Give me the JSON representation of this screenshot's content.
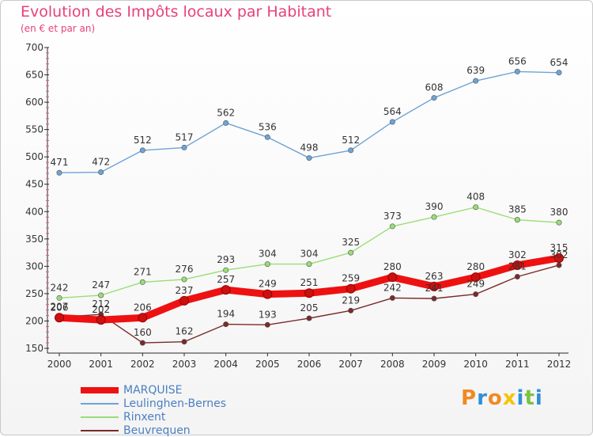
{
  "header": {
    "title": "Evolution des Impôts locaux par Habitant",
    "subtitle": "(en € et par an)"
  },
  "logo": {
    "text": "Proxiti"
  },
  "colors": {
    "title": "#e8417a",
    "axis": "#2a2a2a",
    "grid": "#ee5577"
  },
  "chart_data": {
    "type": "line",
    "categories": [
      "2000",
      "2001",
      "2002",
      "2003",
      "2004",
      "2005",
      "2006",
      "2007",
      "2008",
      "2009",
      "2010",
      "2011",
      "2012"
    ],
    "ylim": [
      150,
      700
    ],
    "yticks": [
      150,
      200,
      250,
      300,
      350,
      400,
      450,
      500,
      550,
      600,
      650,
      700
    ],
    "grid": false,
    "legend_position": "bottom-left",
    "series": [
      {
        "name": "MARQUISE",
        "color": "#ee1111",
        "values": [
          206,
          202,
          206,
          237,
          257,
          249,
          251,
          259,
          280,
          263,
          280,
          302,
          315
        ]
      },
      {
        "name": "Leulinghen-Bernes",
        "color": "#6fa3d6",
        "values": [
          471,
          472,
          512,
          517,
          562,
          536,
          498,
          512,
          564,
          608,
          639,
          656,
          654
        ]
      },
      {
        "name": "Rinxent",
        "color": "#99dd77",
        "values": [
          242,
          247,
          271,
          276,
          293,
          304,
          304,
          325,
          373,
          390,
          408,
          385,
          380
        ]
      },
      {
        "name": "Beuvrequen",
        "color": "#7a2a2a",
        "values": [
          207,
          212,
          160,
          162,
          194,
          193,
          205,
          219,
          242,
          241,
          249,
          281,
          302
        ]
      }
    ]
  }
}
